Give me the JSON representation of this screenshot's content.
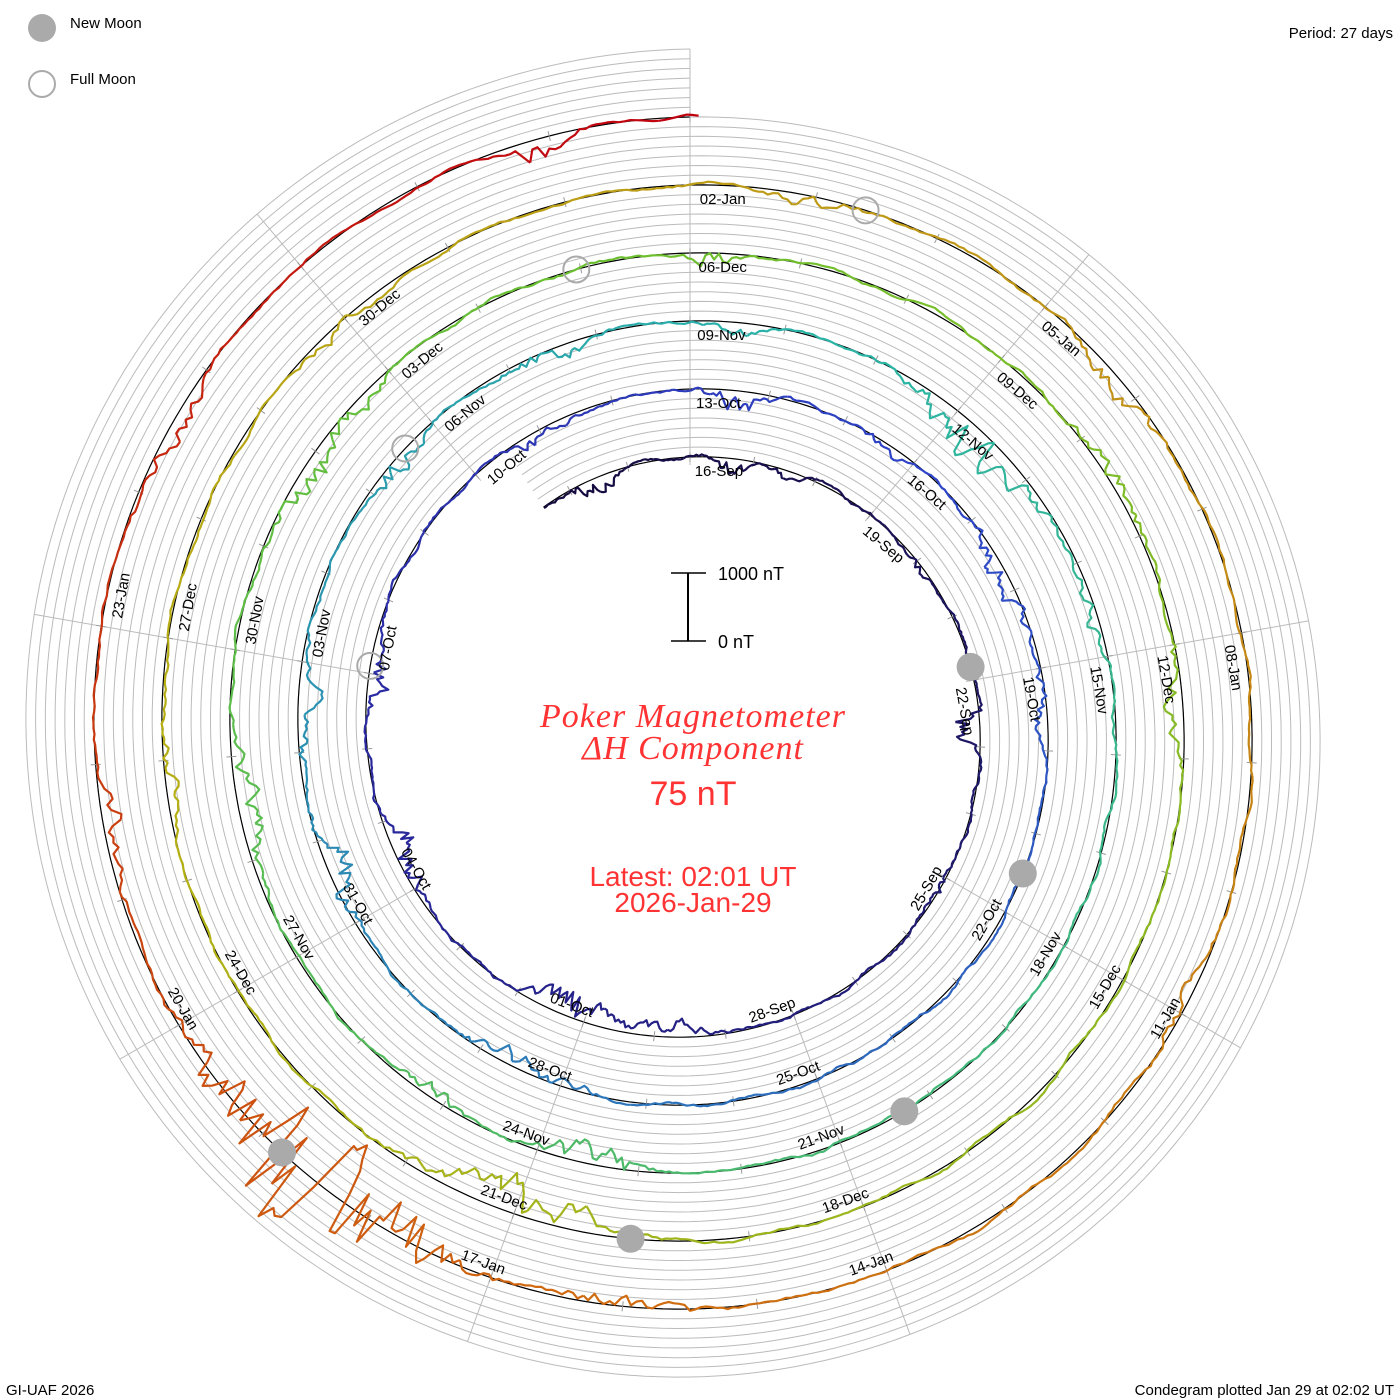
{
  "legend": {
    "new_moon": "New Moon",
    "full_moon": "Full Moon"
  },
  "period_label": "Period: 27 days",
  "footer_left": "GI-UAF 2026",
  "footer_right": "Condegram plotted Jan 29 at 02:02 UT",
  "title_line1": "Poker Magnetometer",
  "title_line2": "ΔH Component",
  "current_value": "75 nT",
  "latest_line1": "Latest: 02:01 UT",
  "latest_line2": "2026-Jan-29",
  "scale_bar": {
    "top_label": "1000 nT",
    "bottom_label": "0 nT",
    "top_value_nT": 1000,
    "bottom_value_nT": 0
  },
  "colors": {
    "text_accent": "#ff3333",
    "moon": "#aaaaaa",
    "grid": "#bbbbbb",
    "baseline": "#000000"
  },
  "chart_data": {
    "type": "line",
    "subtype": "condegram-spiral",
    "title": "Poker Magnetometer ΔH Component",
    "period_days": 27,
    "day_zero": "16-Sep-2025",
    "start_day": -2.5,
    "end_day": 135.08,
    "units": "nT",
    "grid_lines_per_turn": 7,
    "quiet_noise_nT": 35,
    "color_stops": [
      {
        "day": -3,
        "color": "#140a3c"
      },
      {
        "day": 20,
        "color": "#2a2aa0"
      },
      {
        "day": 30,
        "color": "#2e44c8"
      },
      {
        "day": 55,
        "color": "#2ab4a8"
      },
      {
        "day": 80,
        "color": "#6cc030"
      },
      {
        "day": 100,
        "color": "#b4b014"
      },
      {
        "day": 110,
        "color": "#c09818"
      },
      {
        "day": 122,
        "color": "#d06a10"
      },
      {
        "day": 135,
        "color": "#c00010"
      }
    ],
    "disturbances": [
      {
        "day": -1.6,
        "amp_nT": -380,
        "width": 0.35
      },
      {
        "day": 0.6,
        "amp_nT": -420,
        "width": 0.3
      },
      {
        "day": 1.6,
        "amp_nT": -180,
        "width": 0.3
      },
      {
        "day": 4.2,
        "amp_nT": -150,
        "width": 0.3
      },
      {
        "day": 6.7,
        "amp_nT": -650,
        "width": 0.25
      },
      {
        "day": 9.2,
        "amp_nT": -160,
        "width": 0.3
      },
      {
        "day": 14.0,
        "amp_nT": -350,
        "width": 0.8
      },
      {
        "day": 15.3,
        "amp_nT": -650,
        "width": 0.5
      },
      {
        "day": 18.5,
        "amp_nT": -450,
        "width": 0.5
      },
      {
        "day": 21.0,
        "amp_nT": -420,
        "width": 0.4
      },
      {
        "day": 25.0,
        "amp_nT": -250,
        "width": 0.5
      },
      {
        "day": 27.6,
        "amp_nT": -380,
        "width": 0.4
      },
      {
        "day": 29.6,
        "amp_nT": -200,
        "width": 0.3
      },
      {
        "day": 31.8,
        "amp_nT": -380,
        "width": 0.6
      },
      {
        "day": 33.5,
        "amp_nT": -250,
        "width": 0.4
      },
      {
        "day": 42.5,
        "amp_nT": -250,
        "width": 0.8
      },
      {
        "day": 45.6,
        "amp_nT": -550,
        "width": 0.5
      },
      {
        "day": 47.5,
        "amp_nT": -380,
        "width": 0.6
      },
      {
        "day": 50.4,
        "amp_nT": -350,
        "width": 0.4
      },
      {
        "day": 52.5,
        "amp_nT": -220,
        "width": 0.5
      },
      {
        "day": 54.5,
        "amp_nT": -260,
        "width": 0.3
      },
      {
        "day": 57.4,
        "amp_nT": -700,
        "width": 0.8
      },
      {
        "day": 59.5,
        "amp_nT": -220,
        "width": 0.5
      },
      {
        "day": 68.5,
        "amp_nT": -550,
        "width": 0.5
      },
      {
        "day": 70.2,
        "amp_nT": -350,
        "width": 0.3
      },
      {
        "day": 73.5,
        "amp_nT": -450,
        "width": 0.6
      },
      {
        "day": 77.0,
        "amp_nT": -450,
        "width": 0.8
      },
      {
        "day": 81.2,
        "amp_nT": -300,
        "width": 0.3
      },
      {
        "day": 85.5,
        "amp_nT": 280,
        "width": 0.6
      },
      {
        "day": 87.5,
        "amp_nT": -350,
        "width": 0.5
      },
      {
        "day": 96.0,
        "amp_nT": -750,
        "width": 0.8
      },
      {
        "day": 101.0,
        "amp_nT": -260,
        "width": 0.5
      },
      {
        "day": 105.0,
        "amp_nT": -220,
        "width": 0.5
      },
      {
        "day": 109.0,
        "amp_nT": -260,
        "width": 0.4
      },
      {
        "day": 111.8,
        "amp_nT": -260,
        "width": 0.5
      },
      {
        "day": 117.0,
        "amp_nT": -200,
        "width": 0.5
      },
      {
        "day": 122.0,
        "amp_nT": -380,
        "width": 0.5
      },
      {
        "day": 124.5,
        "amp_nT": -1500,
        "width": 0.9
      },
      {
        "day": 127.5,
        "amp_nT": -350,
        "width": 0.5
      },
      {
        "day": 130.5,
        "amp_nT": -300,
        "width": 0.5
      },
      {
        "day": 133.9,
        "amp_nT": -500,
        "width": 0.25
      }
    ],
    "date_labels": [
      {
        "day": 0,
        "text": "16-Sep"
      },
      {
        "day": 3,
        "text": "19-Sep"
      },
      {
        "day": 6,
        "text": "22-Sep"
      },
      {
        "day": 9,
        "text": "25-Sep"
      },
      {
        "day": 12,
        "text": "28-Sep"
      },
      {
        "day": 15,
        "text": "01-Oct"
      },
      {
        "day": 18,
        "text": "04-Oct"
      },
      {
        "day": 21,
        "text": "07-Oct"
      },
      {
        "day": 24,
        "text": "10-Oct"
      },
      {
        "day": 27,
        "text": "13-Oct"
      },
      {
        "day": 30,
        "text": "16-Oct"
      },
      {
        "day": 33,
        "text": "19-Oct"
      },
      {
        "day": 36,
        "text": "22-Oct"
      },
      {
        "day": 39,
        "text": "25-Oct"
      },
      {
        "day": 42,
        "text": "28-Oct"
      },
      {
        "day": 45,
        "text": "31-Oct"
      },
      {
        "day": 48,
        "text": "03-Nov"
      },
      {
        "day": 51,
        "text": "06-Nov"
      },
      {
        "day": 54,
        "text": "09-Nov"
      },
      {
        "day": 57,
        "text": "12-Nov"
      },
      {
        "day": 60,
        "text": "15-Nov"
      },
      {
        "day": 63,
        "text": "18-Nov"
      },
      {
        "day": 66,
        "text": "21-Nov"
      },
      {
        "day": 69,
        "text": "24-Nov"
      },
      {
        "day": 72,
        "text": "27-Nov"
      },
      {
        "day": 75,
        "text": "30-Nov"
      },
      {
        "day": 78,
        "text": "03-Dec"
      },
      {
        "day": 81,
        "text": "06-Dec"
      },
      {
        "day": 84,
        "text": "09-Dec"
      },
      {
        "day": 87,
        "text": "12-Dec"
      },
      {
        "day": 90,
        "text": "15-Dec"
      },
      {
        "day": 93,
        "text": "18-Dec"
      },
      {
        "day": 96,
        "text": "21-Dec"
      },
      {
        "day": 99,
        "text": "24-Dec"
      },
      {
        "day": 102,
        "text": "27-Dec"
      },
      {
        "day": 105,
        "text": "30-Dec"
      },
      {
        "day": 108,
        "text": "02-Jan"
      },
      {
        "day": 111,
        "text": "05-Jan"
      },
      {
        "day": 114,
        "text": "08-Jan"
      },
      {
        "day": 117,
        "text": "11-Jan"
      },
      {
        "day": 120,
        "text": "14-Jan"
      },
      {
        "day": 123,
        "text": "17-Jan"
      },
      {
        "day": 126,
        "text": "20-Jan"
      },
      {
        "day": 129,
        "text": "23-Jan"
      }
    ],
    "new_moons_day": [
      5.8,
      35.5,
      65.3,
      95.0,
      124.8
    ],
    "full_moons_day": [
      21.1,
      50.6,
      79.96,
      109.4
    ]
  }
}
